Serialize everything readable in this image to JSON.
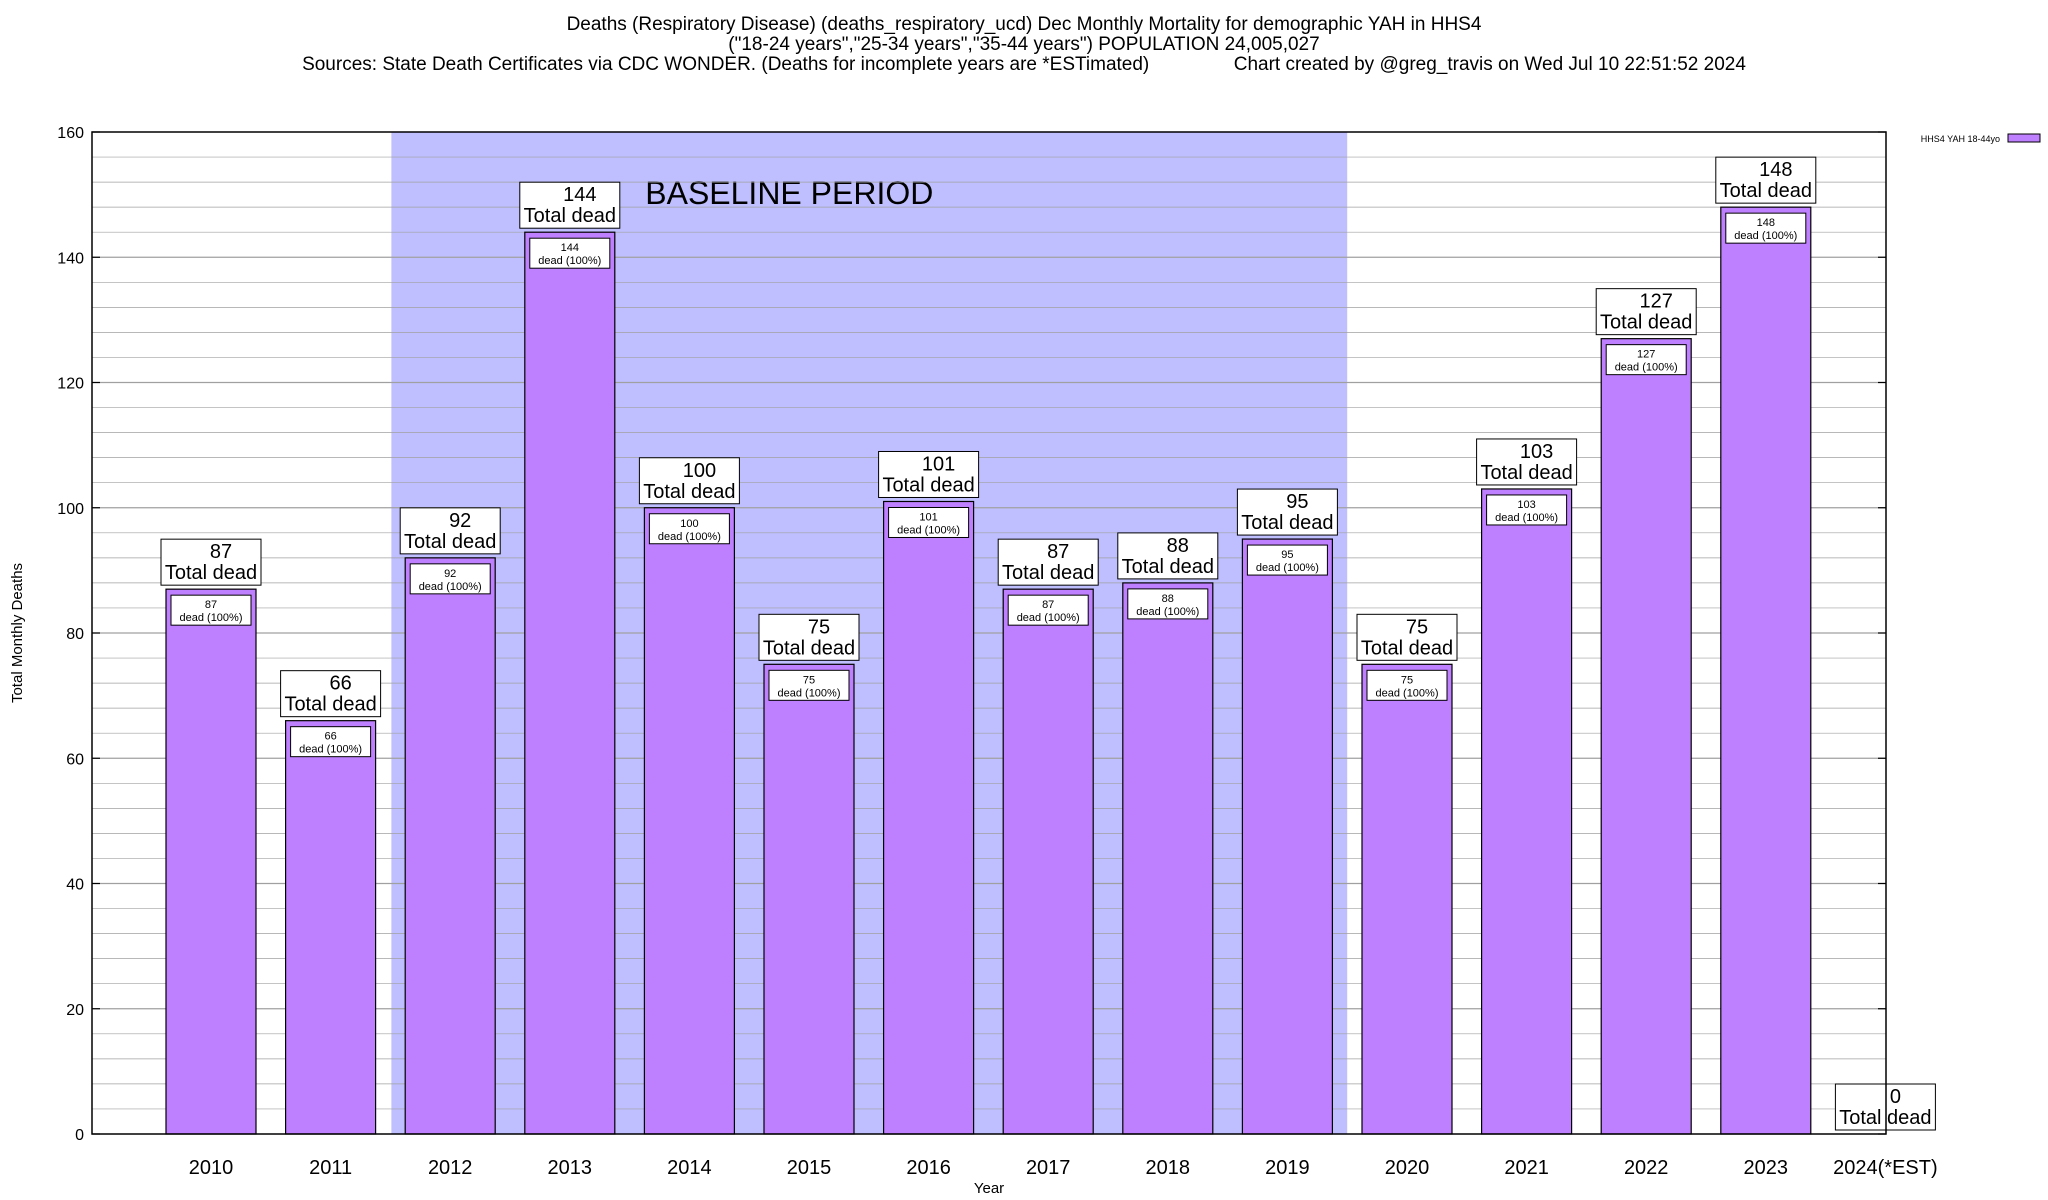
{
  "titles": {
    "line1": "Deaths (Respiratory Disease) (deaths_respiratory_ucd) Dec Monthly Mortality for demographic YAH in HHS4",
    "line2": "(\"18-24 years\",\"25-34 years\",\"35-44 years\") POPULATION 24,005,027",
    "line3": "Sources: State Death Certificates via CDC WONDER. (Deaths for incomplete years are *ESTimated)                Chart created by @greg_travis on Wed Jul 10 22:51:52 2024"
  },
  "chart_data": {
    "type": "bar",
    "categories": [
      "2010",
      "2011",
      "2012",
      "2013",
      "2014",
      "2015",
      "2016",
      "2017",
      "2018",
      "2019",
      "2020",
      "2021",
      "2022",
      "2023",
      "2024(*EST)"
    ],
    "series": [
      {
        "name": "HHS4 YAH 18-44yo",
        "values": [
          87,
          66,
          92,
          144,
          100,
          75,
          101,
          87,
          88,
          95,
          75,
          103,
          127,
          148,
          0
        ]
      }
    ],
    "xlabel": "Year",
    "ylabel": "Total Monthly Deaths",
    "ylim": [
      0,
      160
    ],
    "yticks": [
      0,
      20,
      40,
      60,
      80,
      100,
      120,
      140,
      160
    ],
    "grid": true,
    "legend_position": "top-right",
    "top_label_suffix": "Total dead",
    "inner_label_suffix": "dead (100%)",
    "baseline_band": {
      "label": "BASELINE PERIOD",
      "from_category": "2012",
      "to_category": "2019"
    },
    "colors": {
      "bar_fill": "#bf80ff",
      "bar_edge": "#000000",
      "baseline_band": "#bfbfff",
      "grid": "#a0a0a0",
      "legend_swatch": "#bf80ff"
    }
  }
}
